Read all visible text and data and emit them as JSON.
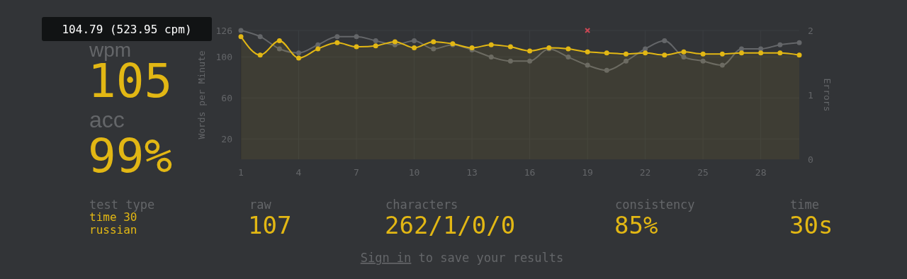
{
  "chart_data": [
    {
      "type": "line",
      "ylabel": "Words per Minute",
      "y2label": "Errors",
      "x": [
        1,
        2,
        3,
        4,
        5,
        6,
        7,
        8,
        9,
        10,
        11,
        12,
        13,
        14,
        15,
        16,
        17,
        18,
        19,
        20,
        21,
        22,
        23,
        24,
        25,
        26,
        27,
        28,
        29,
        30
      ],
      "xlim": [
        1,
        30
      ],
      "xticks": [
        1,
        4,
        7,
        10,
        13,
        16,
        19,
        22,
        25,
        28
      ],
      "ylim": [
        0,
        126
      ],
      "yticks": [
        20,
        60,
        100,
        126
      ],
      "y2lim": [
        0,
        2
      ],
      "y2ticks": [
        0,
        1,
        2
      ],
      "grid": true,
      "marker": "circle",
      "line_style": "solid",
      "series": [
        {
          "type": "line",
          "color": "#646669",
          "values": [
            126,
            120,
            108,
            104,
            112,
            120,
            120,
            116,
            112,
            116,
            108,
            112,
            107,
            100,
            96,
            96,
            108,
            100,
            92,
            87,
            96,
            108,
            116,
            100,
            96,
            92,
            108,
            108,
            112,
            114
          ]
        },
        {
          "type": "area",
          "color": "#e2b714",
          "values": [
            120,
            102,
            116,
            99,
            108,
            114,
            110,
            111,
            115,
            109,
            115,
            113,
            109,
            112,
            110,
            106,
            109,
            108,
            105,
            104,
            103,
            104,
            102,
            105,
            103,
            103,
            104,
            104,
            104,
            102
          ]
        },
        {
          "type": "scatter",
          "axis": "y2",
          "marker": "cross",
          "color": "#ca4754",
          "x": [
            19
          ],
          "values": [
            2
          ]
        }
      ]
    },
    {
      "type": "other",
      "annotations": [
        "104.79 (523.95 cpm)",
        "wpm",
        "105",
        "acc",
        "99%",
        "test type",
        "time 30",
        "russian",
        "raw",
        "107",
        "characters",
        "262/1/0/0",
        "consistency",
        "85%",
        "time",
        "30s",
        "Sign in",
        "to save your results"
      ]
    }
  ]
}
